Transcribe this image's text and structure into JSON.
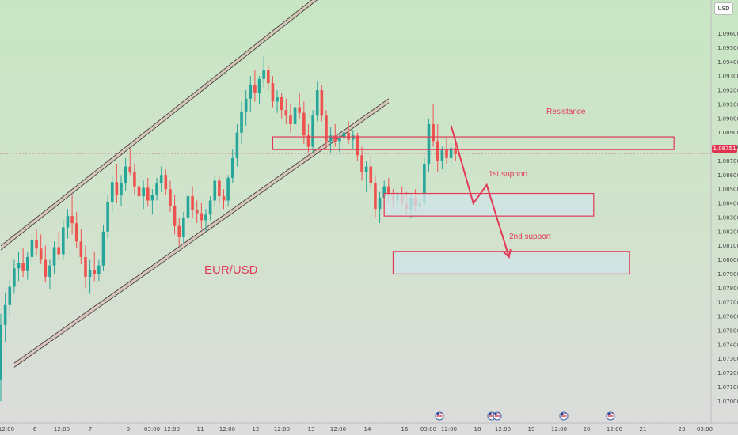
{
  "currency": "USD",
  "last_price": "1.08751",
  "colors": {
    "up": "#26a69a",
    "down": "#ef5350",
    "zone_outline": "#e23a55",
    "annotation_text": "#e23a55",
    "channel_line": "#333333",
    "channel_fill": "#d8b8b0",
    "zone_fill": "#cfe3e6",
    "bg_top": "#c8e6c4",
    "bg_bottom": "#dcdcdc"
  },
  "event_icons": [
    "us-flag-icon",
    "us-eu-flag-icon",
    "us-flag-icon",
    "us-flag-icon"
  ],
  "chart_data": {
    "type": "candlestick",
    "title": "",
    "symbol_label": "EUR/USD",
    "ylim": [
      1.0694,
      1.0976
    ],
    "y_ticks": [
      1.096,
      1.095,
      1.094,
      1.093,
      1.092,
      1.091,
      1.09,
      1.089,
      1.088,
      1.087,
      1.086,
      1.085,
      1.084,
      1.083,
      1.082,
      1.081,
      1.08,
      1.079,
      1.078,
      1.077,
      1.076,
      1.075,
      1.074,
      1.073,
      1.072,
      1.071,
      1.07
    ],
    "y_tick_labels": [
      "1.09600",
      "1.09500",
      "1.09400",
      "1.09300",
      "1.09200",
      "1.09100",
      "1.09000",
      "1.08900",
      "1.08800",
      "1.08700",
      "1.08600",
      "1.08500",
      "1.08400",
      "1.08300",
      "1.08200",
      "1.08100",
      "1.08000",
      "1.07900",
      "1.07800",
      "1.07700",
      "1.07600",
      "1.07500",
      "1.07400",
      "1.07300",
      "1.07200",
      "1.07100",
      "1.07000"
    ],
    "x_ticks": [
      "12:00",
      "6",
      "12:00",
      "7",
      "9",
      "03:00",
      "12:00",
      "11",
      "12:00",
      "12",
      "12:00",
      "13",
      "12:00",
      "14",
      "16",
      "03:00",
      "12:00",
      "18",
      "12:00",
      "19",
      "12:00",
      "20",
      "12:00",
      "21",
      "23",
      "03:00"
    ],
    "candles": [
      [
        1.0715,
        1.0762,
        1.07,
        1.0754
      ],
      [
        1.0754,
        1.0777,
        1.0742,
        1.0768
      ],
      [
        1.0768,
        1.0786,
        1.076,
        1.0781
      ],
      [
        1.0781,
        1.08,
        1.0776,
        1.0794
      ],
      [
        1.0794,
        1.0806,
        1.0785,
        1.0798
      ],
      [
        1.0798,
        1.0808,
        1.0788,
        1.0792
      ],
      [
        1.0792,
        1.0806,
        1.0786,
        1.0802
      ],
      [
        1.0802,
        1.0818,
        1.0796,
        1.0814
      ],
      [
        1.0814,
        1.0822,
        1.0803,
        1.0808
      ],
      [
        1.0808,
        1.0818,
        1.0797,
        1.08
      ],
      [
        1.08,
        1.081,
        1.0784,
        1.0788
      ],
      [
        1.0788,
        1.08,
        1.0779,
        1.0796
      ],
      [
        1.0796,
        1.0813,
        1.079,
        1.0809
      ],
      [
        1.0809,
        1.082,
        1.08,
        1.0804
      ],
      [
        1.0804,
        1.0828,
        1.08,
        1.0823
      ],
      [
        1.0823,
        1.0836,
        1.0815,
        1.0831
      ],
      [
        1.0831,
        1.0846,
        1.0818,
        1.0826
      ],
      [
        1.0826,
        1.0834,
        1.0808,
        1.0813
      ],
      [
        1.0813,
        1.0822,
        1.0797,
        1.0802
      ],
      [
        1.0802,
        1.081,
        1.078,
        1.0788
      ],
      [
        1.0788,
        1.08,
        1.0776,
        1.0793
      ],
      [
        1.0793,
        1.0806,
        1.0785,
        1.079
      ],
      [
        1.079,
        1.08,
        1.0785,
        1.0796
      ],
      [
        1.0796,
        1.0825,
        1.0792,
        1.082
      ],
      [
        1.082,
        1.0846,
        1.0815,
        1.0841
      ],
      [
        1.0841,
        1.086,
        1.0834,
        1.0855
      ],
      [
        1.0855,
        1.0868,
        1.084,
        1.0846
      ],
      [
        1.0846,
        1.086,
        1.0838,
        1.0854
      ],
      [
        1.0854,
        1.0872,
        1.0849,
        1.0866
      ],
      [
        1.0866,
        1.0878,
        1.086,
        1.0862
      ],
      [
        1.0862,
        1.0868,
        1.0846,
        1.0852
      ],
      [
        1.0852,
        1.0862,
        1.084,
        1.0845
      ],
      [
        1.0845,
        1.0856,
        1.0836,
        1.0851
      ],
      [
        1.0851,
        1.0858,
        1.0838,
        1.0842
      ],
      [
        1.0842,
        1.085,
        1.0832,
        1.0846
      ],
      [
        1.0846,
        1.0858,
        1.0842,
        1.0854
      ],
      [
        1.0854,
        1.0866,
        1.0848,
        1.086
      ],
      [
        1.086,
        1.0864,
        1.0846,
        1.085
      ],
      [
        1.085,
        1.0856,
        1.0834,
        1.0838
      ],
      [
        1.0838,
        1.0846,
        1.0818,
        1.0824
      ],
      [
        1.0824,
        1.083,
        1.081,
        1.0816
      ],
      [
        1.0816,
        1.0834,
        1.0812,
        1.083
      ],
      [
        1.083,
        1.085,
        1.0826,
        1.0845
      ],
      [
        1.0845,
        1.0852,
        1.083,
        1.0835
      ],
      [
        1.0835,
        1.0842,
        1.0826,
        1.0833
      ],
      [
        1.0833,
        1.084,
        1.0822,
        1.0828
      ],
      [
        1.0828,
        1.0836,
        1.082,
        1.0832
      ],
      [
        1.0832,
        1.0845,
        1.0828,
        1.0842
      ],
      [
        1.0842,
        1.086,
        1.0838,
        1.0856
      ],
      [
        1.0856,
        1.086,
        1.084,
        1.0845
      ],
      [
        1.0845,
        1.085,
        1.0836,
        1.0842
      ],
      [
        1.0842,
        1.086,
        1.0838,
        1.0858
      ],
      [
        1.0858,
        1.0878,
        1.0854,
        1.0872
      ],
      [
        1.0872,
        1.0896,
        1.0866,
        1.089
      ],
      [
        1.089,
        1.0912,
        1.0882,
        1.0905
      ],
      [
        1.0905,
        1.092,
        1.0895,
        1.0914
      ],
      [
        1.0914,
        1.093,
        1.0905,
        1.0924
      ],
      [
        1.0924,
        1.0934,
        1.0912,
        1.0918
      ],
      [
        1.0918,
        1.093,
        1.091,
        1.0928
      ],
      [
        1.0928,
        1.0944,
        1.0922,
        1.0934
      ],
      [
        1.0934,
        1.0938,
        1.092,
        1.0925
      ],
      [
        1.0925,
        1.093,
        1.0908,
        1.0912
      ],
      [
        1.0912,
        1.092,
        1.0904,
        1.0915
      ],
      [
        1.0915,
        1.0918,
        1.09,
        1.0906
      ],
      [
        1.0906,
        1.0914,
        1.0896,
        1.0902
      ],
      [
        1.0902,
        1.091,
        1.089,
        1.0896
      ],
      [
        1.0896,
        1.0912,
        1.0892,
        1.0908
      ],
      [
        1.0908,
        1.0918,
        1.09,
        1.0904
      ],
      [
        1.0904,
        1.0912,
        1.0882,
        1.0888
      ],
      [
        1.0888,
        1.0896,
        1.0876,
        1.088
      ],
      [
        1.088,
        1.0906,
        1.0876,
        1.0902
      ],
      [
        1.0902,
        1.0926,
        1.0898,
        1.092
      ],
      [
        1.092,
        1.0924,
        1.0898,
        1.0902
      ],
      [
        1.0902,
        1.0906,
        1.0878,
        1.0884
      ],
      [
        1.0884,
        1.0894,
        1.0876,
        1.0888
      ],
      [
        1.0888,
        1.0896,
        1.088,
        1.0884
      ],
      [
        1.0884,
        1.089,
        1.0876,
        1.0886
      ],
      [
        1.0886,
        1.0894,
        1.088,
        1.089
      ],
      [
        1.089,
        1.0898,
        1.0882,
        1.0885
      ],
      [
        1.0885,
        1.0892,
        1.0878,
        1.0888
      ],
      [
        1.0888,
        1.089,
        1.087,
        1.0874
      ],
      [
        1.0874,
        1.088,
        1.0856,
        1.0862
      ],
      [
        1.0862,
        1.087,
        1.0848,
        1.0866
      ],
      [
        1.0866,
        1.0874,
        1.085,
        1.0854
      ],
      [
        1.0854,
        1.086,
        1.083,
        1.0836
      ],
      [
        1.0836,
        1.0848,
        1.0826,
        1.0844
      ],
      [
        1.0844,
        1.0856,
        1.0836,
        1.0852
      ],
      [
        1.0852,
        1.0858,
        1.084,
        1.0846
      ],
      [
        1.0846,
        1.085,
        1.0836,
        1.0842
      ],
      [
        1.0842,
        1.0848,
        1.0836,
        1.0846
      ],
      [
        1.0846,
        1.0852,
        1.0838,
        1.084
      ],
      [
        1.084,
        1.0848,
        1.0832,
        1.0836
      ],
      [
        1.0836,
        1.0846,
        1.083,
        1.0844
      ],
      [
        1.0844,
        1.085,
        1.0834,
        1.0838
      ],
      [
        1.0838,
        1.0844,
        1.0834,
        1.084
      ],
      [
        1.084,
        1.0872,
        1.0838,
        1.0868
      ],
      [
        1.0868,
        1.09,
        1.0862,
        1.0896
      ],
      [
        1.0896,
        1.091,
        1.088,
        1.0884
      ],
      [
        1.0884,
        1.0896,
        1.0862,
        1.087
      ],
      [
        1.087,
        1.088,
        1.0864,
        1.0878
      ],
      [
        1.0878,
        1.0886,
        1.0868,
        1.0872
      ],
      [
        1.0872,
        1.0882,
        1.0866,
        1.0879
      ],
      [
        1.0879,
        1.0884,
        1.087,
        1.0875
      ]
    ],
    "channel": {
      "upper": [
        [
          0,
          1.081
        ],
        [
          71,
          1.0987
        ]
      ],
      "lower": [
        [
          3,
          1.0727
        ],
        [
          87,
          1.0914
        ]
      ],
      "band_width": 0.0003
    },
    "zones": [
      {
        "label": "Resistance",
        "x_from": 61,
        "x_to": 151,
        "y_low": 1.0878,
        "y_high": 1.0887,
        "filled": false
      },
      {
        "label": "1st support",
        "x_from": 86,
        "x_to": 133,
        "y_low": 1.0831,
        "y_high": 1.0847,
        "filled": true
      },
      {
        "label": "2nd support",
        "x_from": 88,
        "x_to": 141,
        "y_low": 1.079,
        "y_high": 1.0806,
        "filled": true
      }
    ],
    "projection_path": [
      [
        101,
        1.0895
      ],
      [
        106,
        1.084
      ],
      [
        109,
        1.0853
      ],
      [
        114,
        1.0802
      ]
    ]
  }
}
